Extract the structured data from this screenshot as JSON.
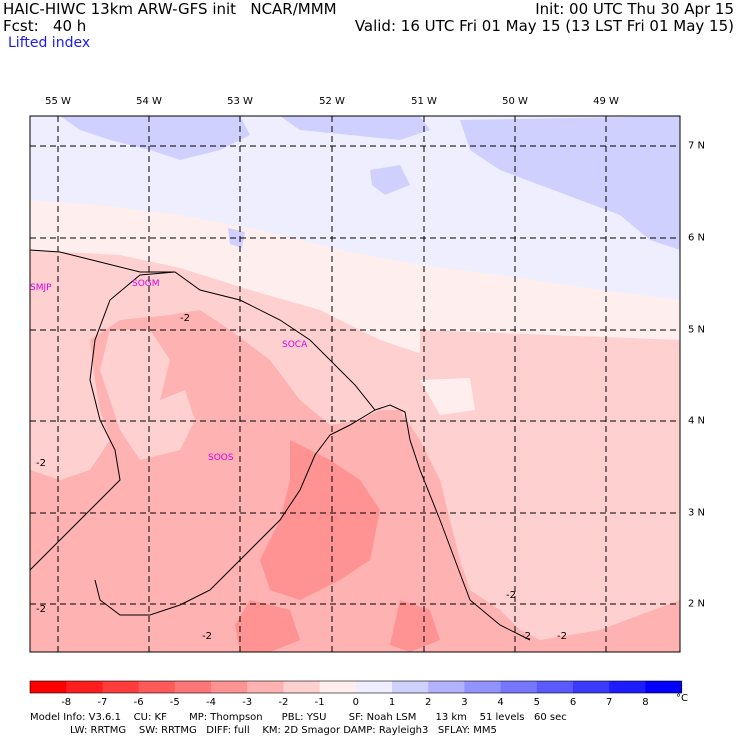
{
  "header": {
    "line1_left": "HAIC-HIWC 13km ARW-GFS init   NCAR/MMM",
    "line2_left": "Fcst:   40 h",
    "line1_right": "Init: 00 UTC Thu 30 Apr 15",
    "line2_right": "Valid: 16 UTC Fri 01 May 15 (13 LST Fri 01 May 15)"
  },
  "field_label": "Lifted index",
  "longitudes": [
    "55 W",
    "54 W",
    "53 W",
    "52 W",
    "51 W",
    "50 W",
    "49 W"
  ],
  "latitudes": [
    "7 N",
    "6 N",
    "5 N",
    "4 N",
    "3 N",
    "2 N"
  ],
  "stations": [
    "SMJP",
    "SOGM",
    "SOCA",
    "SOOS"
  ],
  "contour_labels": [
    "-2",
    "-2",
    "-2",
    "-2",
    "-2",
    "-2",
    "-2"
  ],
  "colorbar": {
    "unit": "°C",
    "labels": [
      "-8",
      "-7",
      "-6",
      "-5",
      "-4",
      "-3",
      "-2",
      "-1",
      "0",
      "1",
      "2",
      "3",
      "4",
      "5",
      "6",
      "7",
      "8"
    ],
    "colors": [
      "#ff0000",
      "#ff1d1d",
      "#ff3b3b",
      "#ff5a5a",
      "#ff7676",
      "#ff9393",
      "#ffb2b2",
      "#ffd0d0",
      "#ffeeee",
      "#eeeeff",
      "#d0d0ff",
      "#b2b2ff",
      "#9393ff",
      "#7676ff",
      "#5a5aff",
      "#3b3bff",
      "#1d1dff",
      "#0000ff"
    ]
  },
  "footer": {
    "line1": "Model Info: V3.6.1    CU: KF       MP: Thompson      PBL: YSU       SF: Noah LSM      13 km    51 levels   60 sec",
    "line2": "LW: RRTMG    SW: RRTMG   DIFF: full    KM: 2D Smagor DAMP: Rayleigh3   SFLAY: MM5"
  }
}
